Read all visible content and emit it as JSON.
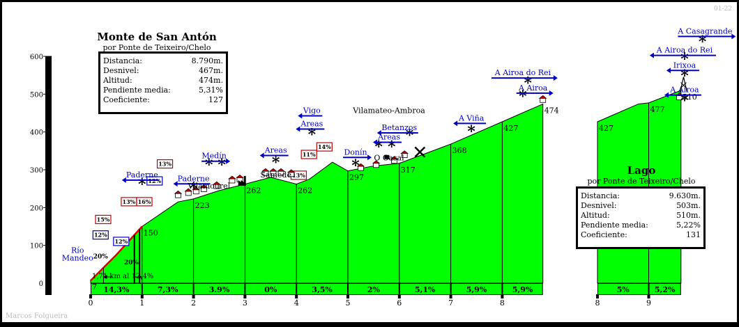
{
  "credit_top": "01-22",
  "credit_bottom": "Marcos Folgueira",
  "climb1": {
    "title": "Monte de San Antón",
    "subtitle": "por Ponte de Teixeiro/Chelo",
    "stats": [
      {
        "label": "Distancia:",
        "value": "8.790m."
      },
      {
        "label": "Desnivel:",
        "value": "467m."
      },
      {
        "label": "Altitud:",
        "value": "474m."
      },
      {
        "label": "Pendiente media:",
        "value": "5,31%"
      },
      {
        "label": "Coeficiente:",
        "value": "127"
      }
    ]
  },
  "climb2": {
    "title": "Lago",
    "subtitle": "por Ponte de Teixeiro/Chelo",
    "stats": [
      {
        "label": "Distancia:",
        "value": "9.630m."
      },
      {
        "label": "Desnivel:",
        "value": "503m."
      },
      {
        "label": "Altitud:",
        "value": "510m."
      },
      {
        "label": "Pendiente media:",
        "value": "5,22%"
      },
      {
        "label": "Coeficiente:",
        "value": "131"
      }
    ]
  },
  "chart_data": {
    "type": "area",
    "x_unit": "km",
    "y_ticks": [
      100,
      200,
      300,
      400,
      500,
      600
    ],
    "ylim": [
      0,
      600
    ],
    "x_ticks_segment1": [
      0,
      1,
      2,
      3,
      4,
      5,
      6,
      7,
      8
    ],
    "x_ticks_segment2": [
      8,
      9
    ],
    "profile1": [
      {
        "x": 0.0,
        "y": 7
      },
      {
        "x": 0.5,
        "y": 75
      },
      {
        "x": 1.0,
        "y": 150
      },
      {
        "x": 1.7,
        "y": 215
      },
      {
        "x": 2.0,
        "y": 223
      },
      {
        "x": 2.5,
        "y": 245
      },
      {
        "x": 3.0,
        "y": 262
      },
      {
        "x": 3.5,
        "y": 280
      },
      {
        "x": 4.0,
        "y": 262
      },
      {
        "x": 4.25,
        "y": 275
      },
      {
        "x": 4.7,
        "y": 320
      },
      {
        "x": 5.0,
        "y": 297
      },
      {
        "x": 5.5,
        "y": 310
      },
      {
        "x": 6.0,
        "y": 317
      },
      {
        "x": 7.0,
        "y": 368
      },
      {
        "x": 8.0,
        "y": 427
      },
      {
        "x": 8.79,
        "y": 474
      }
    ],
    "profile2": [
      {
        "x": 8.0,
        "y": 427
      },
      {
        "x": 8.8,
        "y": 474
      },
      {
        "x": 9.0,
        "y": 477
      },
      {
        "x": 9.63,
        "y": 510
      }
    ],
    "point_labels": [
      {
        "x": 0.0,
        "y": 7,
        "label": "7"
      },
      {
        "x": 1.0,
        "y": 150,
        "label": "150"
      },
      {
        "x": 2.0,
        "y": 223,
        "label": "223"
      },
      {
        "x": 3.0,
        "y": 262,
        "label": "262"
      },
      {
        "x": 4.0,
        "y": 262,
        "label": "262"
      },
      {
        "x": 5.0,
        "y": 297,
        "label": "297"
      },
      {
        "x": 6.0,
        "y": 317,
        "label": "317"
      },
      {
        "x": 7.0,
        "y": 368,
        "label": "368"
      },
      {
        "x": 8.0,
        "y": 427,
        "label": "427"
      },
      {
        "x": 8.79,
        "y": 474,
        "label": "474"
      },
      {
        "x": 9.0,
        "y": 477,
        "label": "477"
      },
      {
        "x": 9.63,
        "y": 510,
        "label": "510"
      }
    ],
    "point_labels2": [
      {
        "x": 8.0,
        "y": 427,
        "label": "427"
      }
    ],
    "segment_gradients": [
      {
        "from": 0,
        "to": 1,
        "label": "14,3%"
      },
      {
        "from": 1,
        "to": 2,
        "label": "7,3%"
      },
      {
        "from": 2,
        "to": 3,
        "label": "3.9%"
      },
      {
        "from": 3,
        "to": 4,
        "label": "0%"
      },
      {
        "from": 4,
        "to": 5,
        "label": "3,5%"
      },
      {
        "from": 5,
        "to": 6,
        "label": "2%"
      },
      {
        "from": 6,
        "to": 7,
        "label": "5,1%"
      },
      {
        "from": 7,
        "to": 8,
        "label": "5,9%"
      },
      {
        "from": 8,
        "to": 8.79,
        "label": "5,9%"
      },
      {
        "from": 8,
        "to": 9,
        "label": "5%",
        "segment": 2
      },
      {
        "from": 9,
        "to": 9.63,
        "label": "5,2%",
        "segment": 2
      }
    ],
    "steep_labels": [
      {
        "x": 0.05,
        "y": 65,
        "label": "20%"
      },
      {
        "x": 0.65,
        "y": 50,
        "label": "20%"
      }
    ],
    "gradient_boxes": [
      {
        "x": -0.05,
        "y": 122,
        "label": "12%"
      },
      {
        "x": 0.0,
        "y": 163,
        "label": "15%"
      },
      {
        "x": 0.35,
        "y": 105,
        "label": "12%"
      },
      {
        "x": 0.5,
        "y": 210,
        "label": "13%"
      },
      {
        "x": 0.8,
        "y": 210,
        "label": "16%"
      },
      {
        "x": 1.0,
        "y": 265,
        "label": "12%"
      },
      {
        "x": 1.2,
        "y": 310,
        "label": "13%"
      },
      {
        "x": 3.8,
        "y": 280,
        "label": "13%"
      },
      {
        "x": 4.0,
        "y": 335,
        "label": "11%"
      },
      {
        "x": 4.3,
        "y": 355,
        "label": "14%"
      }
    ],
    "distance_note": {
      "x1": 0.25,
      "x2": 1.0,
      "label": "1,71 km al 12,4%"
    },
    "places": [
      {
        "x": -0.2,
        "y": 80,
        "lines": [
          "Río",
          "Mandeo"
        ]
      },
      {
        "x": 1.0,
        "y": 280,
        "label": "Paderne",
        "arrow": "left"
      },
      {
        "x": 2.0,
        "y": 270,
        "label": "Paderne",
        "arrow": "left"
      },
      {
        "x": 2.4,
        "y": 330,
        "label": "Medín",
        "arrow": "right"
      },
      {
        "x": 2.3,
        "y": 250,
        "label": "Vilamourel"
      },
      {
        "x": 3.6,
        "y": 345,
        "label": "Areas",
        "arrow": "left"
      },
      {
        "x": 3.6,
        "y": 280,
        "label": "Samede"
      },
      {
        "x": 4.3,
        "y": 450,
        "label": "Vigo",
        "arrow": "left"
      },
      {
        "x": 4.3,
        "y": 415,
        "label": "Areas",
        "arrow": "left"
      },
      {
        "x": 5.15,
        "y": 340,
        "label": "Donín",
        "arrow": "right"
      },
      {
        "x": 5.8,
        "y": 450,
        "label": "Vilamateo-Ambroa"
      },
      {
        "x": 5.8,
        "y": 380,
        "label": "Areas",
        "arrow": "left"
      },
      {
        "x": 6.0,
        "y": 405,
        "label": "Betanzos",
        "arrow": "left"
      },
      {
        "x": 5.8,
        "y": 325,
        "label": "O Casal"
      },
      {
        "x": 7.4,
        "y": 430,
        "label": "A Viña",
        "arrow": "left"
      },
      {
        "x": 8.4,
        "y": 550,
        "label": "A Airoa do Rei",
        "arrow": "right"
      },
      {
        "x": 8.6,
        "y": 510,
        "label": "A Airoa",
        "arrow": "right"
      },
      {
        "x": 9.7,
        "y": 505,
        "label": "A Airoa",
        "arrow": "left"
      },
      {
        "x": 9.7,
        "y": 570,
        "label": "Irixoa",
        "arrow": "left"
      },
      {
        "x": 9.7,
        "y": 610,
        "label": "A Airoa do Rei",
        "arrow": "left"
      },
      {
        "x": 10.1,
        "y": 660,
        "label": "A Casagrande",
        "arrow": "right"
      }
    ],
    "stars": [
      {
        "x": 1.0,
        "y": 260
      },
      {
        "x": 2.0,
        "y": 250
      },
      {
        "x": 2.3,
        "y": 312
      },
      {
        "x": 2.55,
        "y": 312
      },
      {
        "x": 3.6,
        "y": 318
      },
      {
        "x": 4.3,
        "y": 392
      },
      {
        "x": 5.15,
        "y": 310
      },
      {
        "x": 5.6,
        "y": 360
      },
      {
        "x": 5.85,
        "y": 360
      },
      {
        "x": 6.2,
        "y": 390
      },
      {
        "x": 7.4,
        "y": 400
      },
      {
        "x": 8.5,
        "y": 528
      },
      {
        "x": 8.4,
        "y": 493
      },
      {
        "x": 9.7,
        "y": 548
      },
      {
        "x": 9.7,
        "y": 592
      },
      {
        "x": 9.7,
        "y": 482
      },
      {
        "x": 10.05,
        "y": 638
      }
    ],
    "houses": [
      {
        "x": 1.7,
        "y": 226
      },
      {
        "x": 1.9,
        "y": 232
      },
      {
        "x": 2.05,
        "y": 236
      },
      {
        "x": 2.2,
        "y": 242
      },
      {
        "x": 2.45,
        "y": 250
      },
      {
        "x": 2.75,
        "y": 265
      },
      {
        "x": 2.9,
        "y": 268
      },
      {
        "x": 3.4,
        "y": 285
      },
      {
        "x": 3.55,
        "y": 285
      },
      {
        "x": 3.7,
        "y": 285
      },
      {
        "x": 3.9,
        "y": 282
      },
      {
        "x": 5.25,
        "y": 298
      },
      {
        "x": 5.55,
        "y": 306
      },
      {
        "x": 5.9,
        "y": 317
      },
      {
        "x": 6.1,
        "y": 332
      },
      {
        "x": 8.79,
        "y": 478
      },
      {
        "x": 9.6,
        "y": 485
      }
    ],
    "grid_verticals": [
      1,
      2,
      3,
      4,
      5,
      6,
      7,
      8
    ],
    "grid_verticals2": [
      9
    ],
    "xlabel": "",
    "ylabel": ""
  }
}
